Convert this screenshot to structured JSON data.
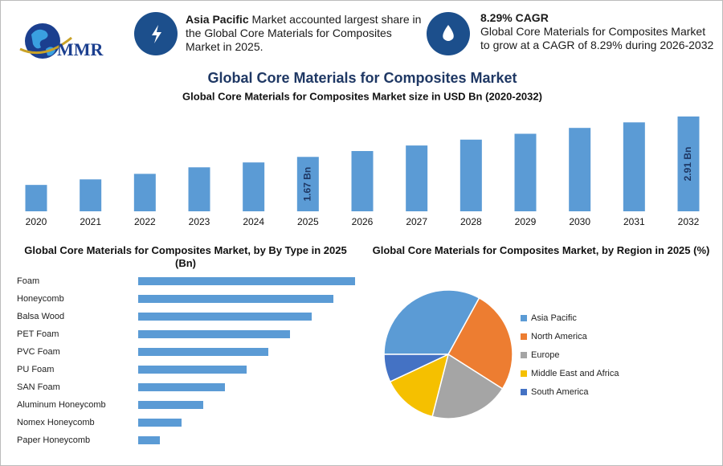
{
  "header": {
    "logo": "MMR",
    "cards": [
      {
        "bold": "Asia Pacific",
        "text": "Market accounted largest share in the Global Core Materials for Composites Market in 2025."
      },
      {
        "bold": "8.29% CAGR",
        "text": "Global Core Materials for Composites Market to grow at a CAGR of 8.29% during 2026-2032"
      }
    ]
  },
  "chart_data": [
    {
      "type": "bar",
      "title": "Global Core Materials for Composites Market",
      "subtitle": "Global Core Materials for Composites Market size in USD Bn (2020-2032)",
      "categories": [
        "2020",
        "2021",
        "2022",
        "2023",
        "2024",
        "2025",
        "2026",
        "2027",
        "2028",
        "2029",
        "2030",
        "2031",
        "2032"
      ],
      "values": [
        0.81,
        0.98,
        1.15,
        1.35,
        1.5,
        1.67,
        1.85,
        2.02,
        2.2,
        2.38,
        2.56,
        2.73,
        2.91
      ],
      "value_labels": [
        null,
        null,
        null,
        null,
        null,
        "1.67 Bn",
        null,
        null,
        null,
        null,
        null,
        null,
        "2.91 Bn"
      ],
      "color": "#5b9bd5"
    },
    {
      "type": "barh",
      "title": "Global Core Materials for Composites Market, by By Type in 2025 (Bn)",
      "categories": [
        "Foam",
        "Honeycomb",
        "Balsa Wood",
        "PET Foam",
        "PVC Foam",
        "PU Foam",
        "SAN Foam",
        "Aluminum Honeycomb",
        "Nomex Honeycomb",
        "Paper Honeycomb"
      ],
      "values": [
        0.3,
        0.27,
        0.24,
        0.21,
        0.18,
        0.15,
        0.12,
        0.09,
        0.06,
        0.03
      ],
      "color": "#5b9bd5"
    },
    {
      "type": "pie",
      "title": "Global Core Materials for Composites Market, by Region in 2025 (%)",
      "categories": [
        "Asia Pacific",
        "North America",
        "Europe",
        "Middle East and Africa",
        "South America"
      ],
      "values": [
        33,
        26,
        20,
        14,
        7
      ],
      "colors": [
        "#5b9bd5",
        "#ed7d31",
        "#a5a5a5",
        "#f5c000",
        "#4472c4"
      ]
    }
  ]
}
